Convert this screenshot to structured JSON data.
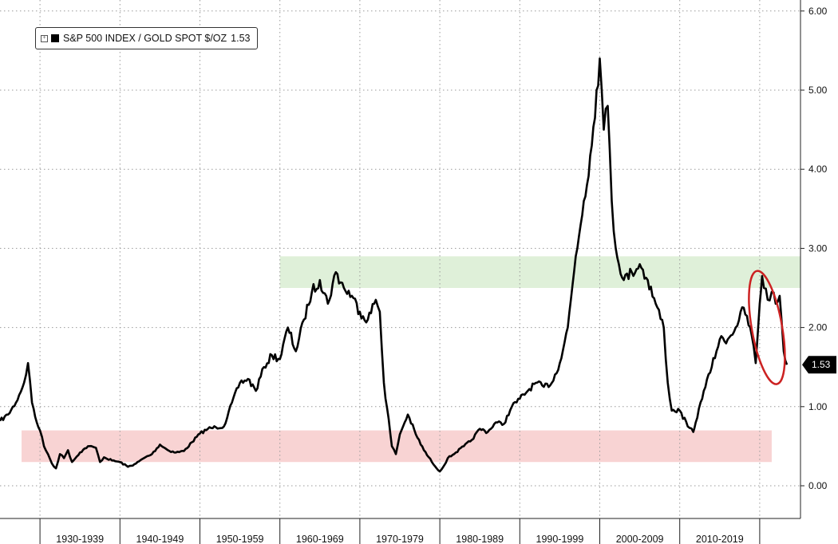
{
  "chart_data": {
    "type": "line",
    "title": "",
    "xlabel": "",
    "ylabel": "",
    "ylim": [
      -0.35,
      6.1
    ],
    "y_ticks": [
      "6.00",
      "5.00",
      "4.00",
      "3.00",
      "2.00",
      "1.00",
      "0.00"
    ],
    "x_ticks": [
      "1930-1939",
      "1940-1949",
      "1950-1959",
      "1960-1969",
      "1970-1979",
      "1980-1989",
      "1990-1999",
      "2000-2009",
      "2010-2019"
    ],
    "legend_position": "top-left",
    "series": [
      {
        "name": "S&P 500 INDEX / GOLD SPOT $/OZ",
        "last_value": "1.53",
        "color": "#000000",
        "x": [
          1925.0,
          1926.0,
          1927.0,
          1928.0,
          1928.5,
          1929.0,
          1929.6,
          1930.0,
          1930.5,
          1931.0,
          1931.5,
          1932.0,
          1932.5,
          1933.0,
          1933.5,
          1934.0,
          1935.0,
          1936.0,
          1937.0,
          1937.5,
          1938.0,
          1939.0,
          1940.0,
          1941.0,
          1942.0,
          1943.0,
          1944.0,
          1945.0,
          1946.0,
          1947.0,
          1948.0,
          1949.0,
          1950.0,
          1951.0,
          1952.0,
          1953.0,
          1954.0,
          1955.0,
          1956.0,
          1957.0,
          1958.0,
          1959.0,
          1960.0,
          1961.0,
          1962.0,
          1963.0,
          1964.0,
          1965.0,
          1966.0,
          1967.0,
          1968.0,
          1969.0,
          1970.0,
          1971.0,
          1972.0,
          1972.5,
          1973.0,
          1974.0,
          1974.5,
          1975.0,
          1976.0,
          1977.0,
          1978.0,
          1979.0,
          1980.0,
          1980.5,
          1981.0,
          1982.0,
          1983.0,
          1984.0,
          1985.0,
          1986.0,
          1987.0,
          1988.0,
          1989.0,
          1990.0,
          1991.0,
          1992.0,
          1993.0,
          1994.0,
          1995.0,
          1996.0,
          1997.0,
          1998.0,
          1999.0,
          1999.6,
          2000.0,
          2000.5,
          2001.0,
          2001.5,
          2002.0,
          2003.0,
          2004.0,
          2005.0,
          2006.0,
          2007.0,
          2008.0,
          2008.5,
          2009.0,
          2010.0,
          2011.0,
          2011.7,
          2012.0,
          2013.0,
          2014.0,
          2015.0,
          2016.0,
          2017.0,
          2018.0,
          2019.0,
          2019.5,
          2020.0,
          2020.3,
          2021.0,
          2021.5,
          2022.0,
          2022.5,
          2023.0,
          2023.4
        ],
        "values": [
          0.82,
          0.9,
          1.05,
          1.3,
          1.55,
          1.05,
          0.8,
          0.7,
          0.5,
          0.4,
          0.28,
          0.22,
          0.4,
          0.35,
          0.45,
          0.3,
          0.42,
          0.5,
          0.48,
          0.3,
          0.36,
          0.32,
          0.3,
          0.24,
          0.28,
          0.35,
          0.4,
          0.52,
          0.45,
          0.42,
          0.44,
          0.55,
          0.66,
          0.72,
          0.74,
          0.75,
          1.05,
          1.3,
          1.35,
          1.2,
          1.5,
          1.65,
          1.6,
          2.0,
          1.7,
          2.1,
          2.45,
          2.6,
          2.3,
          2.7,
          2.5,
          2.4,
          2.2,
          2.1,
          2.35,
          2.2,
          1.3,
          0.5,
          0.4,
          0.65,
          0.9,
          0.65,
          0.45,
          0.3,
          0.18,
          0.25,
          0.35,
          0.42,
          0.5,
          0.58,
          0.72,
          0.68,
          0.8,
          0.78,
          1.0,
          1.1,
          1.2,
          1.3,
          1.25,
          1.3,
          1.55,
          2.0,
          2.9,
          3.6,
          4.3,
          5.0,
          5.4,
          4.5,
          4.8,
          3.6,
          3.0,
          2.6,
          2.7,
          2.8,
          2.6,
          2.3,
          2.0,
          1.3,
          0.95,
          0.95,
          0.75,
          0.68,
          0.8,
          1.2,
          1.5,
          1.85,
          1.85,
          2.0,
          2.25,
          1.9,
          1.55,
          2.3,
          2.65,
          2.35,
          2.45,
          2.3,
          2.4,
          1.7,
          1.53
        ]
      }
    ],
    "bands": [
      {
        "label": "",
        "y_min": 0.3,
        "y_max": 0.7,
        "x_start": 1927.7,
        "x_end": 2021.5,
        "color": "#f8d3d3"
      },
      {
        "label": "",
        "y_min": 2.5,
        "y_max": 2.9,
        "x_start": 1960.0,
        "x_end": 2030.0,
        "color": "#dff0d9"
      }
    ],
    "annotation": {
      "type": "ellipse",
      "color": "#cc2222"
    }
  }
}
